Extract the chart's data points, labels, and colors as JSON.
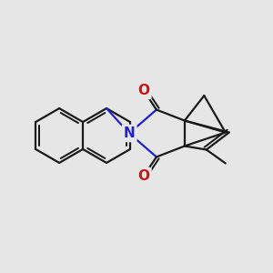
{
  "bg_color": "#e6e6e6",
  "bond_color": "#1a1a1a",
  "N_color": "#2222cc",
  "O_color": "#cc1111",
  "bond_width": 1.6,
  "font_size_atom": 11,
  "xlim": [
    -3.3,
    2.6
  ],
  "ylim": [
    -2.1,
    2.3
  ]
}
